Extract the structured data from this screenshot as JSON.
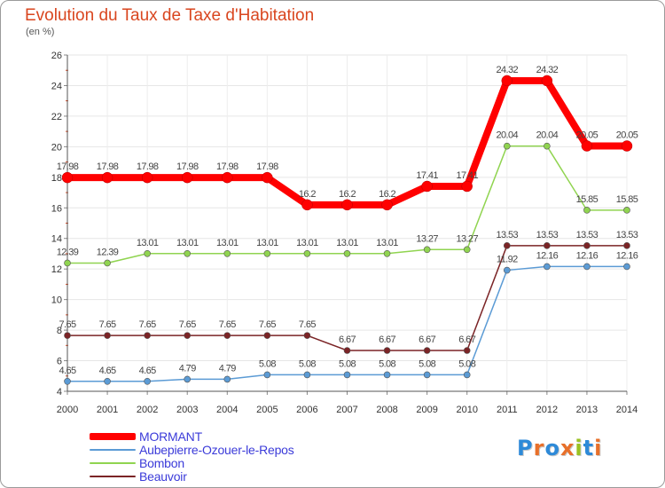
{
  "title": "Evolution du Taux de Taxe d'Habitation",
  "unit_label": "(en %)",
  "logo_text": "Proxiti",
  "logo_colors": [
    "#2e8ad8",
    "#e8702a",
    "#2e8ad8",
    "#e8702a",
    "#9ac222",
    "#2e8ad8",
    "#e8702a"
  ],
  "chart_data": {
    "type": "line",
    "title": "Evolution du Taux de Taxe d'Habitation",
    "ylabel": "(en %)",
    "xlabel": "",
    "x": [
      "2000",
      "2001",
      "2002",
      "2003",
      "2004",
      "2005",
      "2006",
      "2007",
      "2008",
      "2009",
      "2010",
      "2011",
      "2012",
      "2013",
      "2014"
    ],
    "ylim": [
      4,
      26
    ],
    "yticks": [
      4,
      6,
      8,
      10,
      12,
      14,
      16,
      18,
      20,
      22,
      24,
      26
    ],
    "grid": true,
    "legend_position": "bottom-left",
    "series": [
      {
        "name": "MORMANT",
        "color": "#ff0000",
        "values": [
          17.98,
          17.98,
          17.98,
          17.98,
          17.98,
          17.98,
          16.2,
          16.2,
          16.2,
          17.41,
          17.41,
          24.32,
          24.32,
          20.05,
          20.05
        ],
        "labels": [
          "17.98",
          "17.98",
          "17.98",
          "17.98",
          "17.98",
          "17.98",
          "16.2",
          "16.2",
          "16.2",
          "17.41",
          "17.41",
          "24.32",
          "24.32",
          "20.05",
          "20.05"
        ]
      },
      {
        "name": "Aubepierre-Ozouer-le-Repos",
        "color": "#5b9bd5",
        "values": [
          4.65,
          4.65,
          4.65,
          4.79,
          4.79,
          5.08,
          5.08,
          5.08,
          5.08,
          5.08,
          5.08,
          11.92,
          12.16,
          12.16,
          12.16
        ],
        "labels": [
          "4.65",
          "4.65",
          "4.65",
          "4.79",
          "4.79",
          "5.08",
          "5.08",
          "5.08",
          "5.08",
          "5.08",
          "5.08",
          "11.92",
          "12.16",
          "12.16",
          "12.16"
        ]
      },
      {
        "name": "Bombon",
        "color": "#90d450",
        "values": [
          12.39,
          12.39,
          13.01,
          13.01,
          13.01,
          13.01,
          13.01,
          13.01,
          13.01,
          13.27,
          13.27,
          20.04,
          20.04,
          15.85,
          15.85
        ],
        "labels": [
          "12.39",
          "12.39",
          "13.01",
          "13.01",
          "13.01",
          "13.01",
          "13.01",
          "13.01",
          "13.01",
          "13.27",
          "13.27",
          "20.04",
          "20.04",
          "15.85",
          "15.85"
        ]
      },
      {
        "name": "Beauvoir",
        "color": "#7b2426",
        "values": [
          7.65,
          7.65,
          7.65,
          7.65,
          7.65,
          7.65,
          7.65,
          6.67,
          6.67,
          6.67,
          6.67,
          13.53,
          13.53,
          13.53,
          13.53
        ],
        "labels": [
          "7.65",
          "7.65",
          "7.65",
          "7.65",
          "7.65",
          "7.65",
          "7.65",
          "6.67",
          "6.67",
          "6.67",
          "6.67",
          "13.53",
          "13.53",
          "13.53",
          "13.53"
        ]
      }
    ]
  },
  "legend": [
    {
      "label": "MORMANT",
      "color": "#ff0000",
      "thick": true
    },
    {
      "label": "Aubepierre-Ozouer-le-Repos",
      "color": "#5b9bd5",
      "thick": false
    },
    {
      "label": "Bombon",
      "color": "#90d450",
      "thick": false
    },
    {
      "label": "Beauvoir",
      "color": "#7b2426",
      "thick": false
    }
  ]
}
